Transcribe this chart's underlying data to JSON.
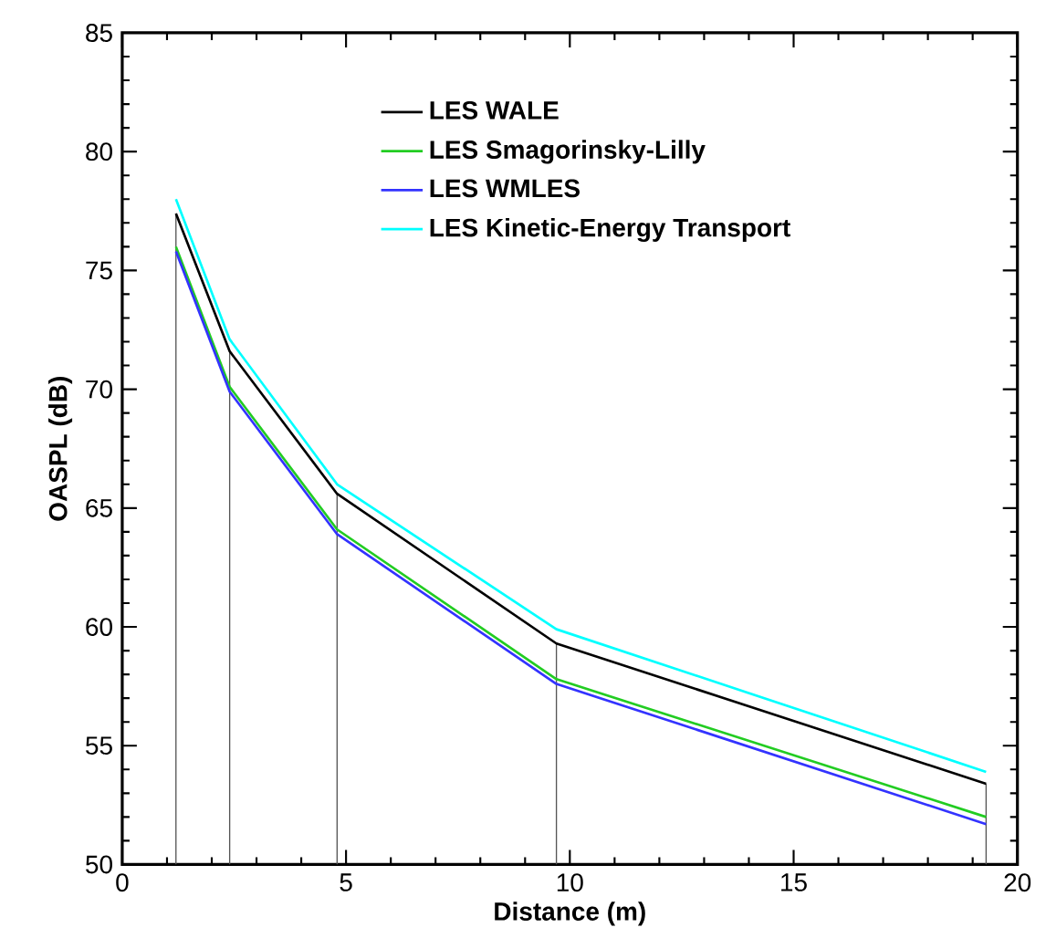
{
  "chart_data": {
    "type": "line",
    "xlabel": "Distance (m)",
    "ylabel": "OASPL (dB)",
    "x": [
      1.2,
      2.4,
      4.8,
      9.7,
      19.3
    ],
    "series": [
      {
        "name": "LES WALE",
        "color": "#000000",
        "values": [
          77.4,
          71.6,
          65.6,
          59.3,
          53.4
        ]
      },
      {
        "name": "LES Smagorinsky-Lilly",
        "color": "#22cc22",
        "values": [
          76.0,
          70.1,
          64.1,
          57.8,
          52.0
        ]
      },
      {
        "name": "LES WMLES",
        "color": "#3333ff",
        "values": [
          75.8,
          69.9,
          63.9,
          57.6,
          51.7
        ]
      },
      {
        "name": "LES Kinetic-Energy Transport",
        "color": "#00ffff",
        "values": [
          78.0,
          72.1,
          66.0,
          59.9,
          53.9
        ]
      }
    ],
    "xlim": [
      0,
      20
    ],
    "ylim": [
      50,
      85
    ],
    "xticks": [
      0,
      5,
      10,
      15,
      20
    ],
    "yticks": [
      50,
      55,
      60,
      65,
      70,
      75,
      80,
      85
    ],
    "ref_lines": [
      {
        "axis": "x",
        "value": 1.2,
        "color": "#555555"
      },
      {
        "axis": "x",
        "value": 2.4,
        "color": "#555555"
      },
      {
        "axis": "x",
        "value": 4.8,
        "color": "#555555"
      },
      {
        "axis": "x",
        "value": 9.7,
        "color": "#555555"
      },
      {
        "axis": "x",
        "value": 19.3,
        "color": "#555555"
      }
    ],
    "legend": "top",
    "grid": false,
    "marker": "none",
    "line_style": "solid"
  }
}
